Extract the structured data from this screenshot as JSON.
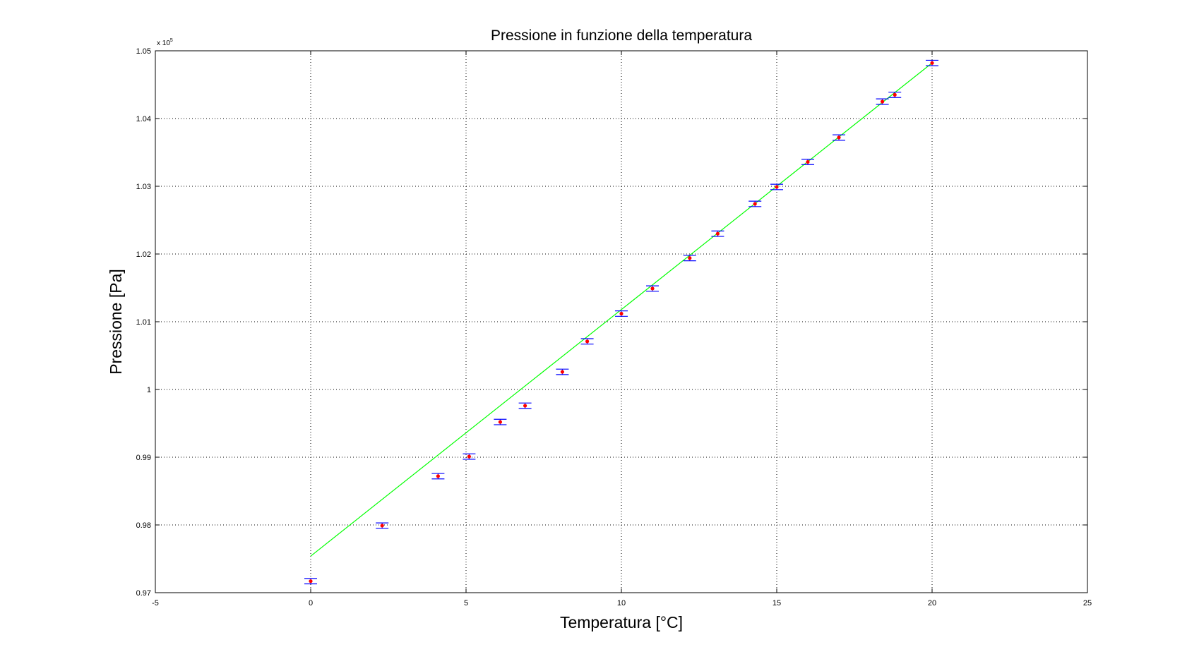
{
  "chart_data": {
    "type": "scatter",
    "title": "Pressione in funzione della temperatura",
    "xlabel": "Temperatura [°C]",
    "ylabel": "Pressione [Pa]",
    "xlim": [
      -5,
      25
    ],
    "ylim": [
      0.97,
      1.05
    ],
    "y_multiplier_label": "x 10",
    "y_multiplier_exponent": "5",
    "grid": true,
    "legend": "none",
    "xticks": [
      "-5",
      "0",
      "5",
      "10",
      "15",
      "20",
      "25"
    ],
    "yticks": [
      "0.97",
      "0.98",
      "0.99",
      "1",
      "1.01",
      "1.02",
      "1.03",
      "1.04",
      "1.05"
    ],
    "series": [
      {
        "style": "points-with-errorbars",
        "color": "#ff0000",
        "errorbar_color": "#0000ff",
        "error": 0.0004,
        "x": [
          0,
          2.3,
          4.1,
          5.1,
          6.1,
          6.9,
          8.1,
          8.9,
          10.0,
          11.0,
          12.2,
          13.1,
          14.3,
          15.0,
          16.0,
          17.0,
          18.4,
          18.8,
          20.0
        ],
        "y": [
          0.9717,
          0.9799,
          0.9872,
          0.9901,
          0.9952,
          0.9976,
          1.0026,
          1.0071,
          1.0112,
          1.0149,
          1.0194,
          1.023,
          1.0274,
          1.0299,
          1.0336,
          1.0372,
          1.0425,
          1.0435,
          1.0482
        ]
      },
      {
        "style": "fit-line",
        "color": "#00ff00",
        "x": [
          0,
          20
        ],
        "y": [
          0.9754,
          1.0482
        ]
      }
    ]
  }
}
